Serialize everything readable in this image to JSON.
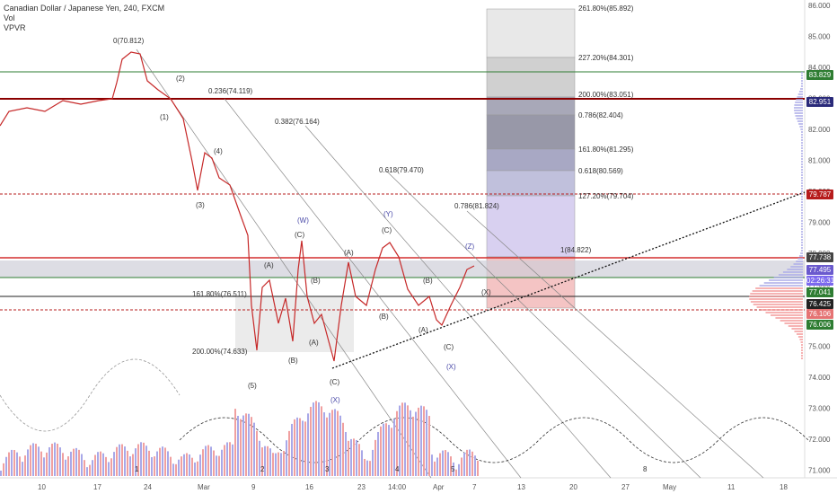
{
  "legend": {
    "symbol": "Canadian Dollar / Japanese Yen, 240, FXCM",
    "vol": "Vol",
    "vpvr": "VPVR"
  },
  "price_axis": [
    "86.000",
    "85.000",
    "84.000",
    "83.000",
    "82.000",
    "81.000",
    "80.000",
    "79.000",
    "78.000",
    "77.000",
    "76.000",
    "75.000",
    "74.000",
    "73.000",
    "72.000",
    "71.000"
  ],
  "time_axis": [
    "10",
    "17",
    "24",
    "Mar",
    "9",
    "16",
    "23",
    "14:00",
    "Apr",
    "7",
    "13",
    "20",
    "27",
    "May",
    "11",
    "18"
  ],
  "price_tags": [
    {
      "label": "83.829",
      "color": "#2e7d32"
    },
    {
      "label": "82.951",
      "color": "#2a2a7a"
    },
    {
      "label": "79.787",
      "color": "#b71c1c"
    },
    {
      "label": "77.738",
      "color": "#444444"
    },
    {
      "label": "77.495",
      "color": "#6a5acd"
    },
    {
      "label": "02:26:31",
      "color": "#7b68ee"
    },
    {
      "label": "77.041",
      "color": "#2e7d32"
    },
    {
      "label": "76.425",
      "color": "#222222"
    },
    {
      "label": "76.106",
      "color": "#e57373"
    },
    {
      "label": "76.006",
      "color": "#2e7d32"
    }
  ],
  "fib_extension": [
    "261.80%(85.892)",
    "227.20%(84.301)",
    "200.00%(83.051)",
    "0.786(82.404)",
    "161.80%(81.295)",
    "0.618(80.569)",
    "127.20%(79.704)",
    "1(84.822)"
  ],
  "annotations": {
    "start": "0(70.812)",
    "fib_0236": "0.236(74.119)",
    "fib_0382": "0.382(76.164)",
    "fib_0618": "0.618(79.470)",
    "fib_0786": "0.786(81.824)",
    "fib_16180": "161.80%(76.511)",
    "fib_200": "200.00%(74.633)"
  },
  "waves_black": [
    "(2)",
    "(1)",
    "(4)",
    "(3)",
    "(5)",
    "(A)",
    "(B)",
    "(C)",
    "(A)",
    "(B)",
    "(C)",
    "(A)",
    "(B)",
    "(C)",
    "(A)",
    "(B)",
    "(C)",
    "(X)"
  ],
  "waves_blue": [
    "(W)",
    "(Y)",
    "(Z)",
    "(X)",
    "(X)"
  ],
  "cycle_labels": [
    "1",
    "2",
    "3",
    "4",
    "5",
    "8"
  ]
}
